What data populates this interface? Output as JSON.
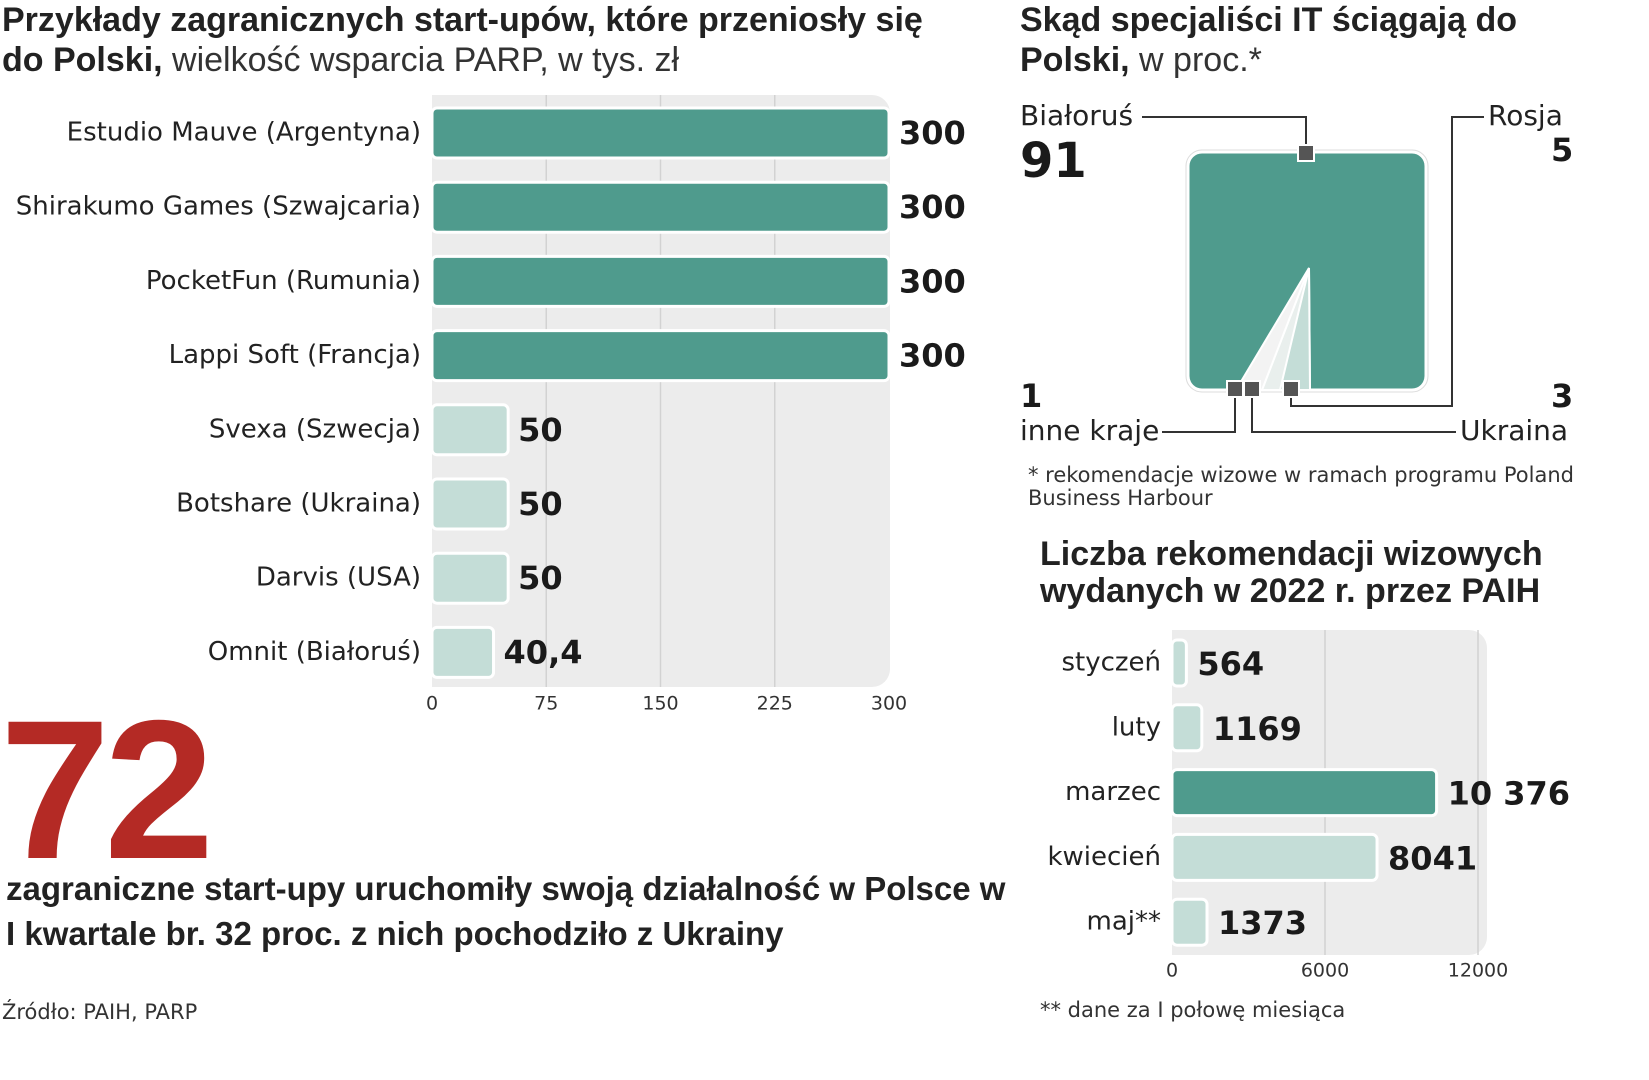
{
  "startups": {
    "title_bold": "Przykłady zagranicznych start-upów, które przeniosły się do Polski,",
    "title_rest": " wielkość wsparcia PARP, w tys. zł"
  },
  "specialists": {
    "title_bold": "Skąd specjaliści IT ściągają do Polski,",
    "title_rest": " w proc.*",
    "footnote": "* rekomendacje wizowe w ramach programu Poland Business Harbour"
  },
  "visas": {
    "title": "Liczba rekomendacji wizowych wydanych w 2022 r. przez PAIH",
    "footnote": "** dane za I połowę miesiąca"
  },
  "highlight": {
    "number": "72",
    "text": "zagraniczne start-upy uruchomiły swoją działalność w Polsce w I kwartale br. 32 proc. z nich pochodziło z Ukrainy"
  },
  "source": "Źródło: PAIH, PARP",
  "colors": {
    "dark": "#4f9b8d",
    "light": "#c4ddd7",
    "panel": "#ececec",
    "red": "#b42a25"
  },
  "chart_data": [
    {
      "type": "bar",
      "orientation": "horizontal",
      "categories": [
        "Estudio Mauve (Argentyna)",
        "Shirakumo Games (Szwajcaria)",
        "PocketFun (Rumunia)",
        "Lappi Soft (Francja)",
        "Svexa (Szwecja)",
        "Botshare (Ukraina)",
        "Darvis (USA)",
        "Omnit (Białoruś)"
      ],
      "values": [
        300,
        300,
        300,
        300,
        50,
        50,
        50,
        40.4
      ],
      "value_labels": [
        "300",
        "300",
        "300",
        "300",
        "50",
        "50",
        "50",
        "40,4"
      ],
      "ticks": [
        "0",
        "75",
        "150",
        "225",
        "300"
      ],
      "xlim": [
        0,
        300
      ],
      "grid": true
    },
    {
      "type": "pie",
      "labels": [
        "Białoruś",
        "Rosja",
        "Ukraina",
        "inne kraje"
      ],
      "values": [
        91,
        5,
        3,
        1
      ]
    },
    {
      "type": "bar",
      "orientation": "horizontal",
      "categories": [
        "styczeń",
        "luty",
        "marzec",
        "kwiecień",
        "maj**"
      ],
      "values": [
        564,
        1169,
        10376,
        8041,
        1373
      ],
      "value_labels": [
        "564",
        "1169",
        "10 376",
        "8041",
        "1373"
      ],
      "ticks": [
        "0",
        "6000",
        "12000"
      ],
      "xlim": [
        0,
        12000
      ],
      "grid": true
    }
  ]
}
